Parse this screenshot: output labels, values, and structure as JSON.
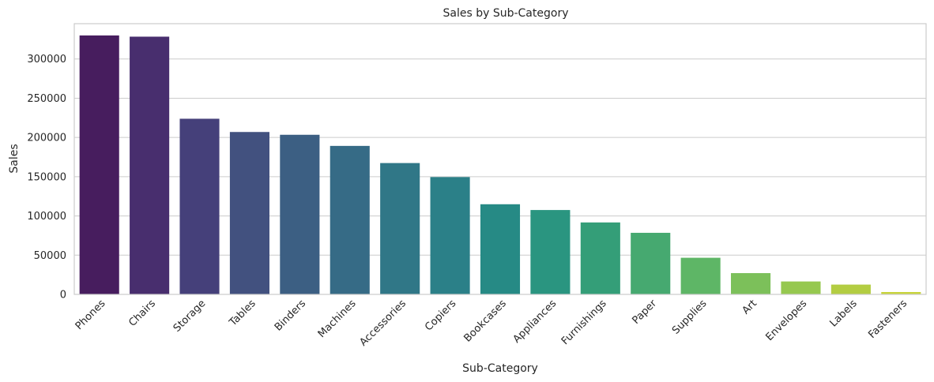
{
  "chart_data": {
    "type": "bar",
    "title": "Sales by Sub-Category",
    "xlabel": "Sub-Category",
    "ylabel": "Sales",
    "categories": [
      "Phones",
      "Chairs",
      "Storage",
      "Tables",
      "Binders",
      "Machines",
      "Accessories",
      "Copiers",
      "Bookcases",
      "Appliances",
      "Furnishings",
      "Paper",
      "Supplies",
      "Art",
      "Envelopes",
      "Labels",
      "Fasteners"
    ],
    "values": [
      330007,
      328449,
      223844,
      206966,
      203413,
      189239,
      167380,
      149528,
      114880,
      107532,
      91705,
      78479,
      46674,
      27119,
      16476,
      12486,
      3024
    ],
    "colors": [
      "#471d5e",
      "#482e6e",
      "#45407a",
      "#42517f",
      "#3c5f83",
      "#366b86",
      "#307787",
      "#2b8088",
      "#268a85",
      "#2a9580",
      "#349e78",
      "#46a970",
      "#5eb666",
      "#7cc05a",
      "#96c84f",
      "#b3cd42",
      "#c8d43a"
    ],
    "yticks": [
      0,
      50000,
      100000,
      150000,
      200000,
      250000,
      300000
    ],
    "ylim": [
      0,
      345000
    ],
    "grid": "horizontal",
    "legend": "none"
  }
}
